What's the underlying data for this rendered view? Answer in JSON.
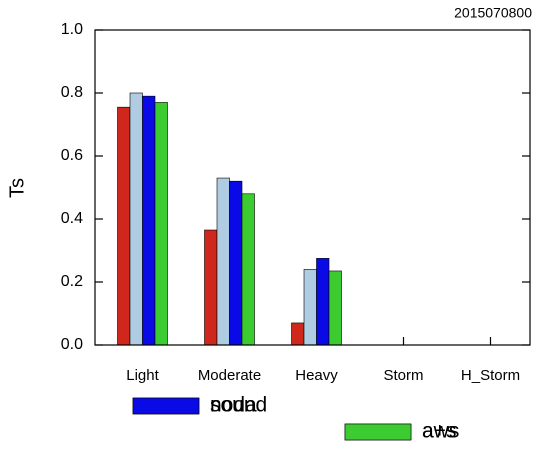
{
  "chart_data": {
    "type": "bar",
    "annotation": "2015070800",
    "y_label": "Ts",
    "categories": [
      "Light",
      "Moderate",
      "Heavy",
      "Storm",
      "H_Storm"
    ],
    "series": [
      {
        "name": "noda",
        "color": "#d0271d",
        "values": [
          0.755,
          0.365,
          0.07,
          0,
          0
        ]
      },
      {
        "name": "aws",
        "color": "#b0cce2",
        "values": [
          0.8,
          0.53,
          0.24,
          0,
          0
        ]
      },
      {
        "name": "sound",
        "color": "#0a0ae6",
        "values": [
          0.79,
          0.52,
          0.275,
          0,
          0
        ]
      },
      {
        "name": "a+s",
        "color": "#3ccc32",
        "values": [
          0.77,
          0.48,
          0.235,
          0,
          0
        ]
      }
    ],
    "ylim": [
      0,
      1
    ],
    "yticks": [
      {
        "value": 0,
        "label": "0.0"
      },
      {
        "value": 0.2,
        "label": "0.2"
      },
      {
        "value": 0.4,
        "label": "0.4"
      },
      {
        "value": 0.6,
        "label": "0.6"
      },
      {
        "value": 0.8,
        "label": "0.8"
      },
      {
        "value": 1,
        "label": "1.0"
      }
    ],
    "legend": "bottom"
  }
}
